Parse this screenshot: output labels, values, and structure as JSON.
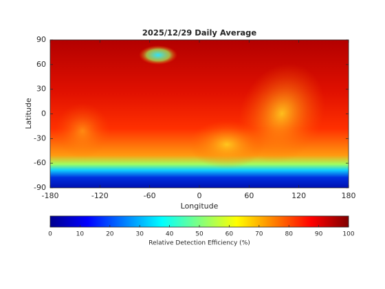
{
  "chart_data": {
    "type": "map",
    "title": "2025/12/29 Daily Average",
    "xlabel": "Longitude",
    "ylabel": "Latitude",
    "xlim": [
      -180,
      180
    ],
    "xticks": [
      -180,
      -120,
      -60,
      0,
      60,
      120,
      180
    ],
    "ylim": [
      -90,
      90
    ],
    "yticks": [
      -90,
      -60,
      -30,
      0,
      30,
      60,
      90
    ],
    "colorbar": {
      "label": "Relative Detection Efficiency (%)",
      "lim": [
        0,
        100
      ],
      "ticks": [
        0,
        10,
        20,
        30,
        40,
        50,
        60,
        70,
        80,
        90,
        100
      ],
      "colormap": "jet"
    }
  }
}
